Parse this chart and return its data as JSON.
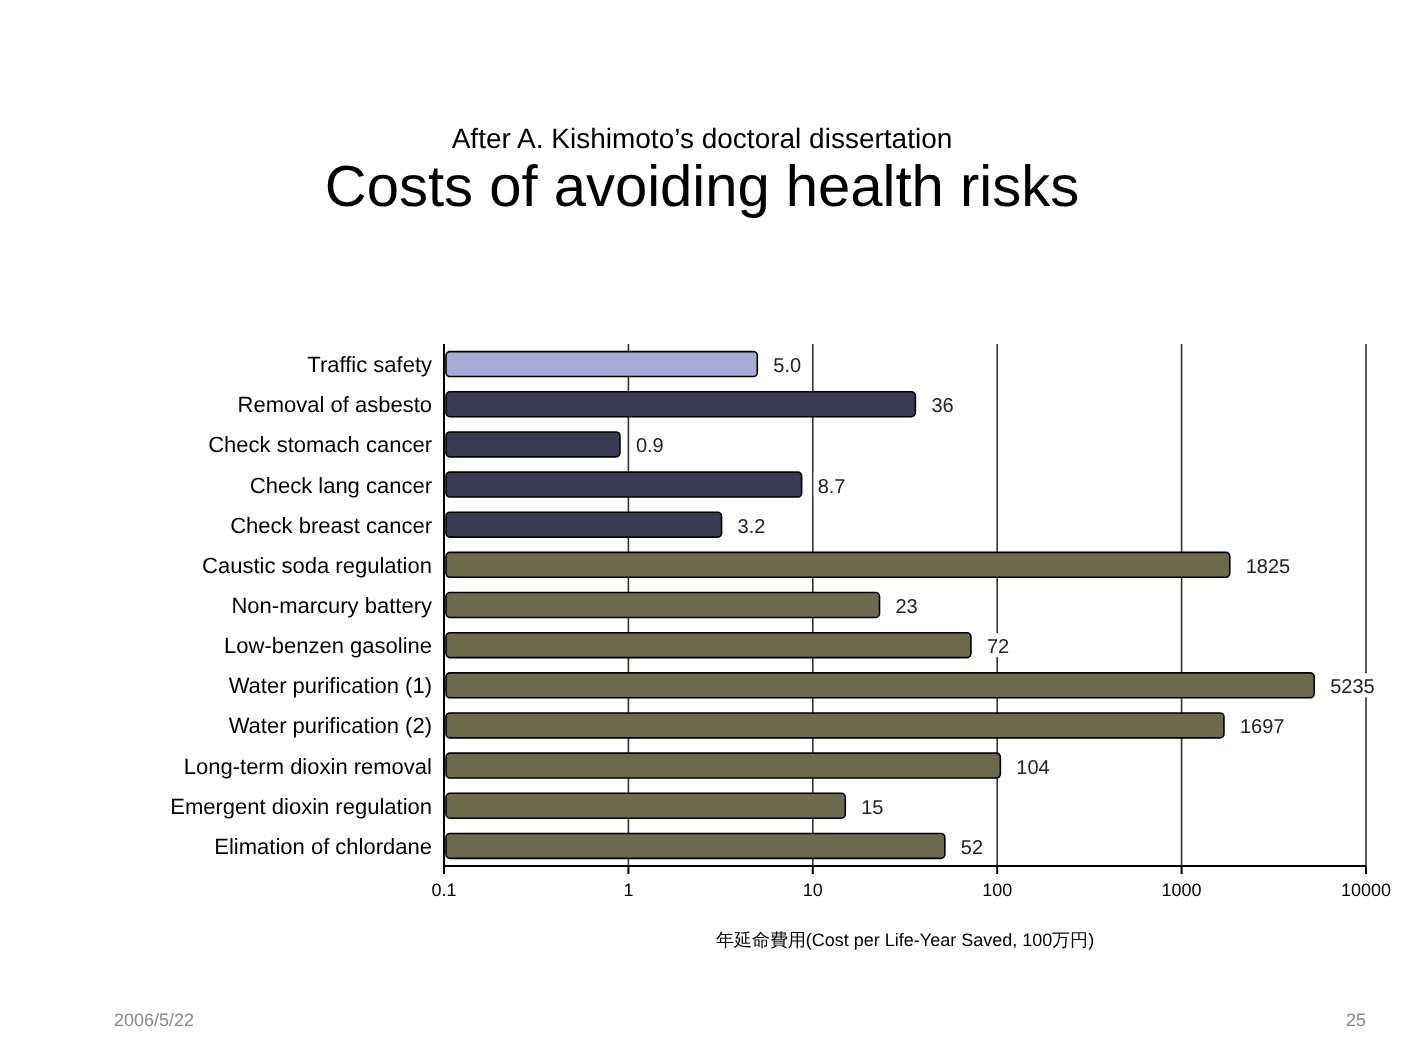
{
  "chart_data": {
    "type": "bar",
    "orientation": "horizontal",
    "log": "x",
    "title": "Costs of avoiding health risks",
    "subtitle": "After A. Kishimoto’s doctoral dissertation",
    "xlabel": "年延命費用(Cost per Life-Year Saved, 100万円)",
    "categories": [
      "Traffic safety",
      "Removal of asbesto",
      "Check stomach cancer",
      "Check lang cancer",
      "Check breast cancer",
      "Caustic soda regulation",
      "Non-marcury battery",
      "Low-benzen gasoline",
      "Water purification (1)",
      "Water purification (2)",
      "Long-term dioxin removal",
      "Emergent dioxin regulation",
      "Elimation of chlordane"
    ],
    "values": [
      5.0,
      36,
      0.9,
      8.7,
      3.2,
      1825,
      23,
      72,
      5235,
      1697,
      104,
      15,
      52
    ],
    "value_labels": [
      "5.0",
      "36",
      "0.9",
      "8.7",
      "3.2",
      "1825",
      "23",
      "72",
      "5235",
      "1697",
      "104",
      "15",
      "52"
    ],
    "colors": [
      "#a9a9d6",
      "#3a3a55",
      "#3a3a55",
      "#3a3a55",
      "#3a3a55",
      "#6b6a4c",
      "#6b6a4c",
      "#6b6a4c",
      "#6b6a4c",
      "#6b6a4c",
      "#6b6a4c",
      "#6b6a4c",
      "#6b6a4c"
    ],
    "xlim": [
      0.1,
      10000
    ],
    "xticks": [
      0.1,
      1,
      10,
      100,
      1000,
      10000
    ],
    "grid": "x",
    "annotations": [
      "2006/5/22",
      "25"
    ]
  }
}
